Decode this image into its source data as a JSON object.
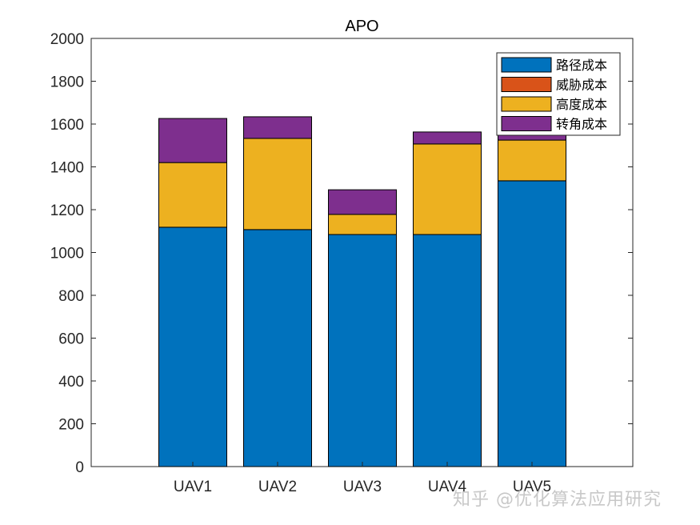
{
  "chart_data": {
    "type": "bar",
    "stacked": true,
    "title": "APO",
    "xlabel": "",
    "ylabel": "",
    "categories": [
      "UAV1",
      "UAV2",
      "UAV3",
      "UAV4",
      "UAV5"
    ],
    "ylim": [
      0,
      2000
    ],
    "yticks": [
      0,
      200,
      400,
      600,
      800,
      1000,
      1200,
      1400,
      1600,
      1800,
      2000
    ],
    "grid": false,
    "legend_position": "northeast",
    "series": [
      {
        "name": "路径成本",
        "color": "#0072BD",
        "values": [
          1118,
          1107,
          1084,
          1084,
          1335
        ]
      },
      {
        "name": "威胁成本",
        "color": "#D95319",
        "values": [
          0,
          0,
          0,
          0,
          0
        ]
      },
      {
        "name": "高度成本",
        "color": "#EDB120",
        "values": [
          302,
          426,
          94,
          423,
          190
        ]
      },
      {
        "name": "转角成本",
        "color": "#7E2F8E",
        "values": [
          206,
          101,
          115,
          56,
          60
        ]
      }
    ]
  },
  "watermark": "知乎 @优化算法应用研究"
}
